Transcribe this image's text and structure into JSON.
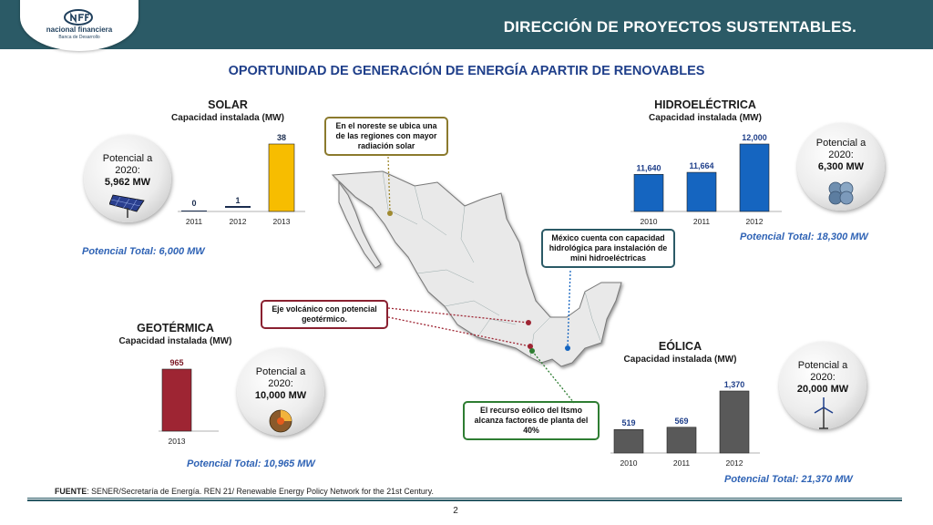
{
  "header": {
    "logo_name": "nacional financiera",
    "logo_sub": "Banca de Desarrollo",
    "title": "DIRECCIÓN DE PROYECTOS SUSTENTABLES."
  },
  "subtitle": "OPORTUNIDAD DE GENERACIÓN DE ENERGÍA APARTIR DE RENOVABLES",
  "colors": {
    "header": "#2b5a66",
    "solar": "#f7bd00",
    "hidro": "#1565c0",
    "geo": "#9e2533",
    "eolica": "#595959",
    "total": "#2f63b5"
  },
  "chart_data": [
    {
      "id": "solar",
      "type": "bar",
      "title": "SOLAR",
      "subtitle": "Capacidad instalada (MW)",
      "categories": [
        "2011",
        "2012",
        "2013"
      ],
      "values": [
        0,
        1,
        38
      ],
      "labels": [
        "0",
        "1",
        "38"
      ],
      "color": "#f7bd00"
    },
    {
      "id": "hidro",
      "type": "bar",
      "title": "HIDROELÉCTRICA",
      "subtitle": "Capacidad instalada (MW)",
      "categories": [
        "2010",
        "2011",
        "2012"
      ],
      "values": [
        11640,
        11664,
        12000
      ],
      "labels": [
        "11,640",
        "11,664",
        "12,000"
      ],
      "color": "#1565c0"
    },
    {
      "id": "geo",
      "type": "bar",
      "title": "GEOTÉRMICA",
      "subtitle": "Capacidad instalada (MW)",
      "categories": [
        "2013"
      ],
      "values": [
        965
      ],
      "labels": [
        "965"
      ],
      "color": "#9e2533"
    },
    {
      "id": "eolica",
      "type": "bar",
      "title": "EÓLICA",
      "subtitle": "Capacidad instalada (MW)",
      "categories": [
        "2010",
        "2011",
        "2012"
      ],
      "values": [
        519,
        569,
        1370
      ],
      "labels": [
        "519",
        "569",
        "1,370"
      ],
      "color": "#595959"
    }
  ],
  "circles": {
    "solar": {
      "label": "Potencial a 2020:",
      "value": "5,962 MW",
      "icon": "solar-panel-icon"
    },
    "hidro": {
      "label": "Potencial a 2020:",
      "value": "6,300 MW",
      "icon": "water-drops-icon"
    },
    "geo": {
      "label": "Potencial a 2020:",
      "value": "10,000 MW",
      "icon": "earth-core-icon"
    },
    "eolica": {
      "label": "Potencial a 2020:",
      "value": "20,000 MW",
      "icon": "wind-turbine-icon"
    }
  },
  "totals": {
    "solar": "Potencial Total: 6,000 MW",
    "hidro": "Potencial Total: 18,300 MW",
    "geo": "Potencial Total: 10,965 MW",
    "eolica": "Potencial Total: 21,370 MW"
  },
  "callouts": {
    "solar": "En el noreste se ubica una de las regiones con mayor radiación solar",
    "hidro": "México cuenta con capacidad hidrológica para instalación de mini hidroeléctricas",
    "geo": "Eje volcánico con potencial geotérmico.",
    "eolica": "El recurso eólico del Itsmo alcanza factores de planta del 40%"
  },
  "footer": {
    "source_label": "FUENTE",
    "source_text": ": SENER/Secretaría de Energía. REN 21/ Renewable Energy Policy Network for the 21st Century.",
    "page": "2"
  }
}
